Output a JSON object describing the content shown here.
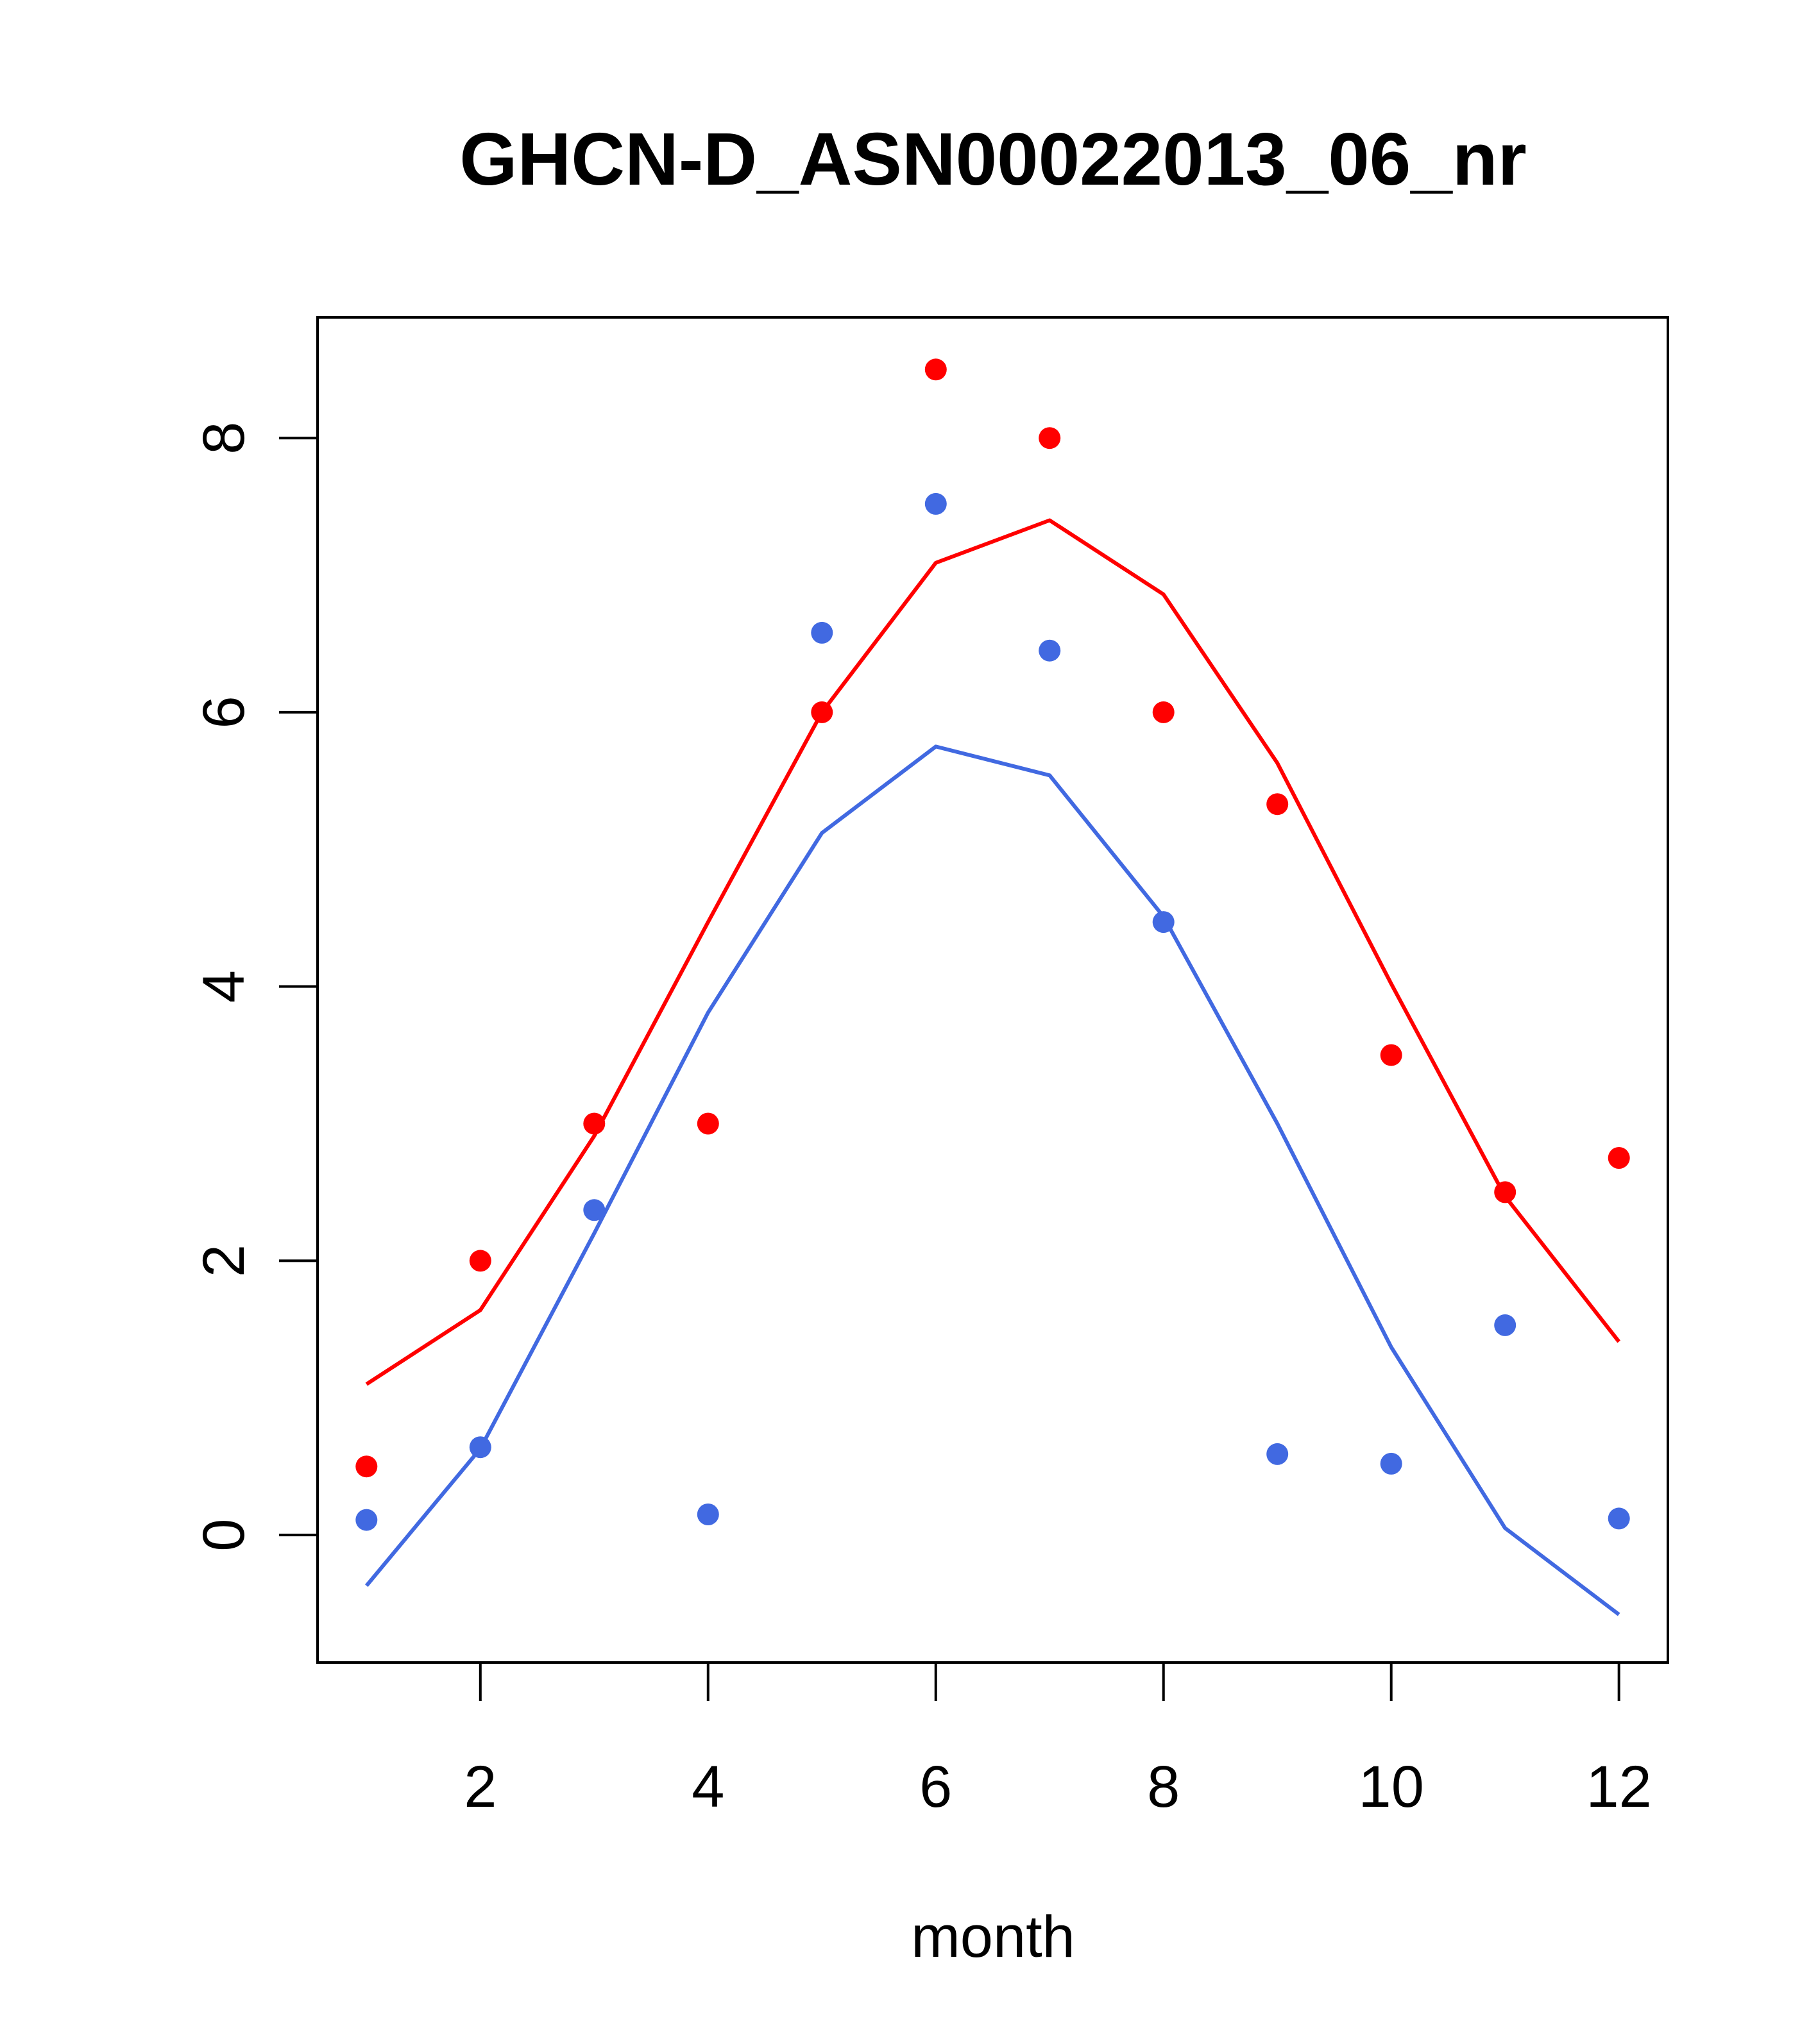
{
  "chart_data": {
    "type": "scatter",
    "title": "GHCN-D_ASN00022013_06_nr",
    "xlabel": "month",
    "ylabel": "",
    "xlim": [
      0.57,
      12.43
    ],
    "ylim": [
      -0.93,
      8.88
    ],
    "xticks": [
      2,
      4,
      6,
      8,
      10,
      12
    ],
    "yticks": [
      0,
      2,
      4,
      6,
      8
    ],
    "grid": false,
    "x": [
      1,
      2,
      3,
      4,
      5,
      6,
      7,
      8,
      9,
      10,
      11,
      12
    ],
    "series": [
      {
        "color": "#ff0000",
        "points": [
          0.5,
          2.0,
          3.0,
          3.0,
          6.0,
          8.5,
          8.0,
          6.0,
          5.33,
          3.5,
          2.5,
          2.75
        ],
        "line": [
          1.1,
          1.64,
          2.91,
          4.47,
          6.0,
          7.09,
          7.4,
          6.86,
          5.63,
          4.02,
          2.47,
          1.41
        ]
      },
      {
        "color": "#4169e1",
        "points": [
          0.11,
          0.64,
          2.37,
          0.15,
          6.58,
          7.52,
          6.45,
          4.47,
          0.59,
          0.52,
          1.53,
          0.12
        ],
        "line": [
          -0.37,
          0.63,
          2.2,
          3.81,
          5.12,
          5.75,
          5.54,
          4.51,
          3.0,
          1.37,
          0.05,
          -0.58
        ]
      }
    ]
  }
}
